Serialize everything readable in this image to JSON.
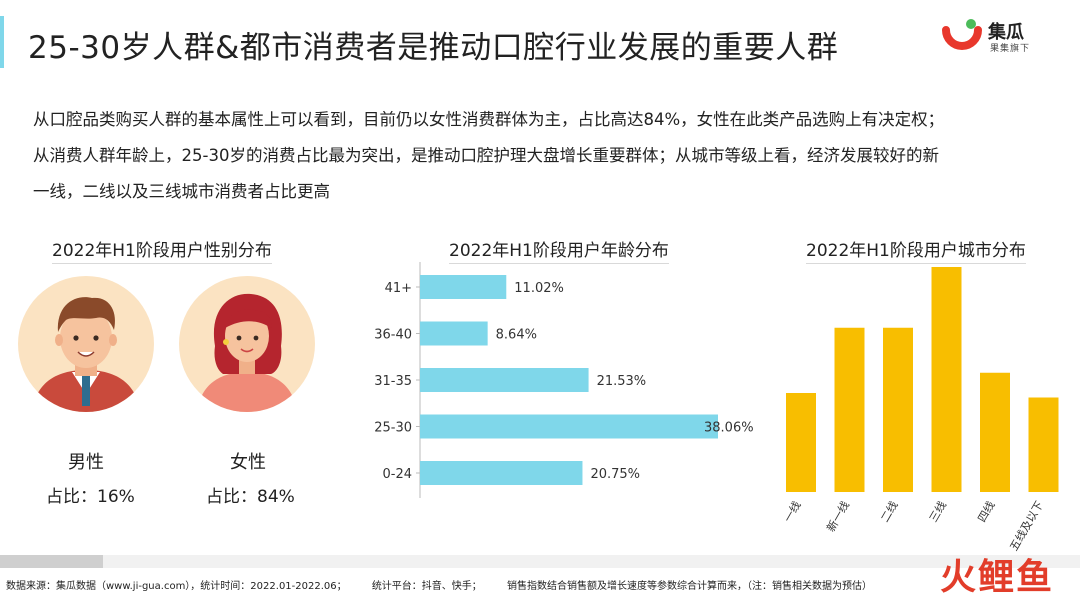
{
  "header": {
    "title": "25-30岁人群&都市消费者是推动口腔行业发展的重要人群",
    "logo_name": "集瓜",
    "logo_sub": "果集旗下",
    "accent_color": "#7fd7ea"
  },
  "intro": [
    "从口腔品类购买人群的基本属性上可以看到，目前仍以女性消费群体为主，占比高达84%，女性在此类产品选购上有决定权；",
    "从消费人群年龄上，25-30岁的消费占比最为突出，是推动口腔护理大盘增长重要群体；从城市等级上看，经济发展较好的新",
    "一线，二线以及三线城市消费者占比更高"
  ],
  "gender_panel": {
    "title": "2022年H1阶段用户性别分布",
    "male_label": "男性",
    "male_share": "占比：16%",
    "female_label": "女性",
    "female_share": "占比：84%"
  },
  "chart_data": [
    {
      "type": "bar",
      "orientation": "horizontal",
      "title": "2022年H1阶段用户年龄分布",
      "categories": [
        "41+",
        "36-40",
        "31-35",
        "25-30",
        "0-24"
      ],
      "values": [
        11.02,
        8.64,
        21.53,
        38.06,
        20.75
      ],
      "value_labels": [
        "11.02%",
        "8.64%",
        "21.53%",
        "38.06%",
        "20.75%"
      ],
      "xlim": [
        0,
        38.06
      ],
      "color": "#7fd7ea",
      "grid": false
    },
    {
      "type": "bar",
      "orientation": "vertical",
      "title": "2022年H1阶段用户城市分布",
      "categories": [
        "一线",
        "新一线",
        "二线",
        "三线",
        "四线",
        "五线及以下"
      ],
      "values": [
        44,
        73,
        73,
        100,
        53,
        42
      ],
      "color": "#f8be00",
      "grid": false
    }
  ],
  "footer": {
    "source": "数据来源：集瓜数据（www.ji-gua.com），统计时间：2022.01-2022.06；",
    "platform": "统计平台：抖音、快手；",
    "note": "销售指数结合销售额及增长速度等参数综合计算而来，（注：销售相关数据为预估）"
  },
  "watermark": "火鲤鱼"
}
